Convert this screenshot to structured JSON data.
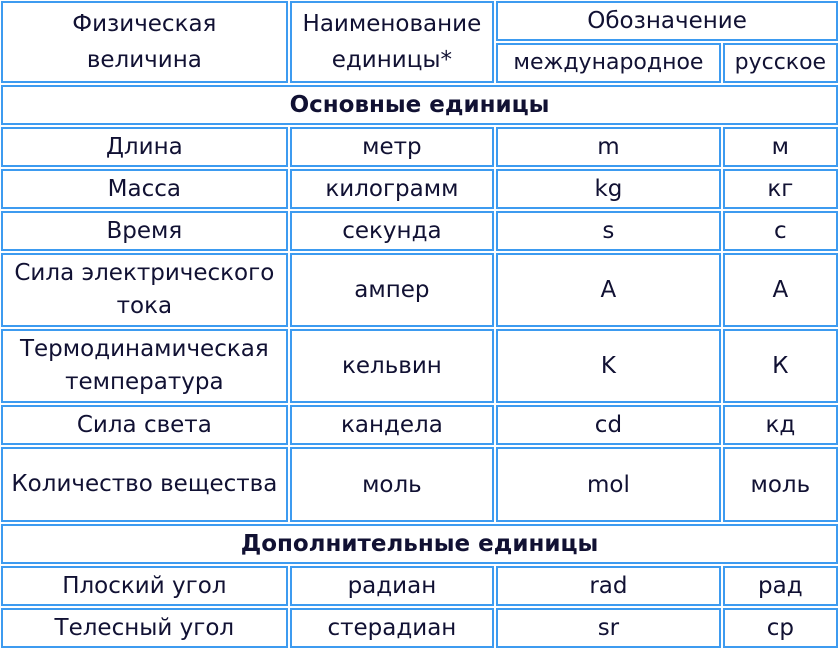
{
  "header": {
    "quantity": "Физическая величина",
    "unit_name": "Наименование единицы*",
    "designation": "Обозначение",
    "international": "международное",
    "russian": "русское"
  },
  "sections": [
    {
      "title": "Основные единицы",
      "rows": [
        [
          "Длина",
          "метр",
          "m",
          "м"
        ],
        [
          "Масса",
          "килограмм",
          "kg",
          "кг"
        ],
        [
          "Время",
          "секунда",
          "s",
          "с"
        ],
        [
          "Сила электрического тока",
          "ампер",
          "A",
          "А"
        ],
        [
          "Термодинамическая температура",
          "кельвин",
          "K",
          "К"
        ],
        [
          "Сила света",
          "кандела",
          "cd",
          "кд"
        ],
        [
          "Количество вещества",
          "моль",
          "mol",
          "моль"
        ]
      ]
    },
    {
      "title": "Дополнительные единицы",
      "rows": [
        [
          "Плоский угол",
          "радиан",
          "rad",
          "рад"
        ],
        [
          "Телесный угол",
          "стерадиан",
          "sr",
          "ср"
        ]
      ]
    }
  ],
  "colors": {
    "border": "#3d9bf0",
    "text": "#111133"
  }
}
